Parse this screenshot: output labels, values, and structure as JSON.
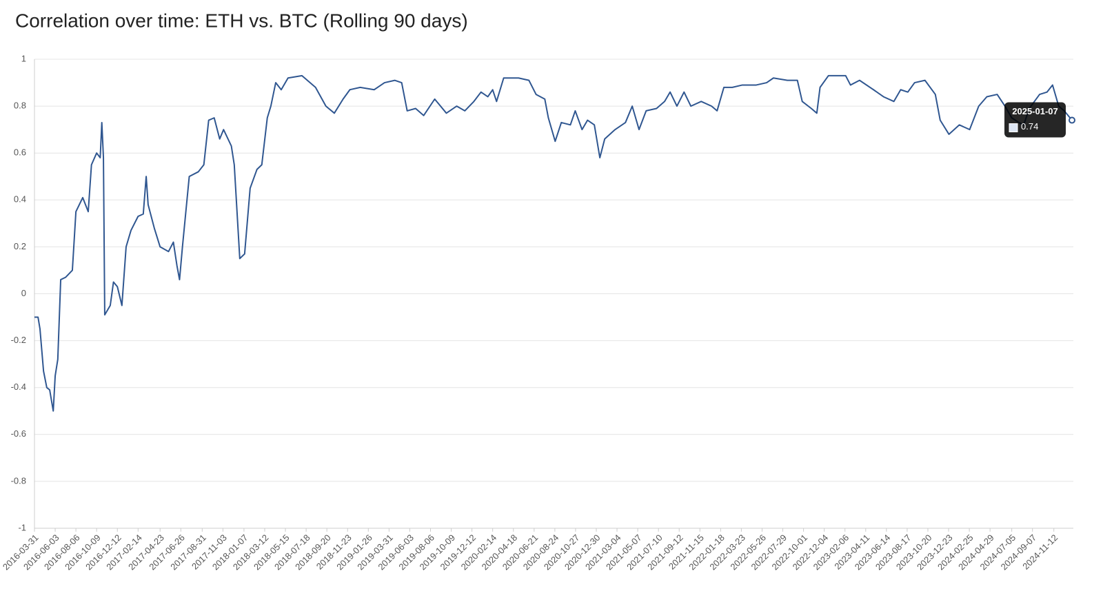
{
  "chart_data": {
    "type": "line",
    "title": "Correlation over time: ETH vs. BTC (Rolling 90 days)",
    "xlim": [
      "2016-03-31",
      "2025-01-07"
    ],
    "xticks": [
      "2016-03-31",
      "2016-06-03",
      "2016-08-06",
      "2016-10-09",
      "2016-12-12",
      "2017-02-14",
      "2017-04-23",
      "2017-06-26",
      "2017-08-31",
      "2017-11-03",
      "2018-01-07",
      "2018-03-12",
      "2018-05-15",
      "2018-07-18",
      "2018-09-20",
      "2018-11-23",
      "2019-01-26",
      "2019-03-31",
      "2019-06-03",
      "2019-08-06",
      "2019-10-09",
      "2019-12-12",
      "2020-02-14",
      "2020-04-18",
      "2020-06-21",
      "2020-08-24",
      "2020-10-27",
      "2020-12-30",
      "2021-03-04",
      "2021-05-07",
      "2021-07-10",
      "2021-09-12",
      "2021-11-15",
      "2022-01-18",
      "2022-03-23",
      "2022-05-26",
      "2022-07-29",
      "2022-10-01",
      "2022-12-04",
      "2023-02-06",
      "2023-04-11",
      "2023-06-14",
      "2023-08-17",
      "2023-10-20",
      "2023-12-23",
      "2024-02-25",
      "2024-04-29",
      "2024-07-05",
      "2024-09-07",
      "2024-11-12"
    ],
    "ylim": [
      -1,
      1
    ],
    "yticks": [
      -1,
      -0.8,
      -0.6,
      -0.4,
      -0.2,
      0,
      0.2,
      0.4,
      0.6,
      0.8,
      1
    ],
    "grid": true,
    "x": [
      "2016-03-31",
      "2016-04-11",
      "2016-04-17",
      "2016-04-28",
      "2016-05-08",
      "2016-05-17",
      "2016-05-28",
      "2016-06-03",
      "2016-06-11",
      "2016-06-20",
      "2016-07-05",
      "2016-07-26",
      "2016-08-06",
      "2016-08-27",
      "2016-09-13",
      "2016-09-23",
      "2016-10-09",
      "2016-10-20",
      "2016-10-25",
      "2016-10-30",
      "2016-11-03",
      "2016-11-20",
      "2016-11-30",
      "2016-12-12",
      "2016-12-26",
      "2017-01-08",
      "2017-01-23",
      "2017-02-14",
      "2017-03-02",
      "2017-03-11",
      "2017-03-17",
      "2017-04-05",
      "2017-04-23",
      "2017-05-19",
      "2017-06-03",
      "2017-06-14",
      "2017-06-22",
      "2017-07-01",
      "2017-07-22",
      "2017-08-19",
      "2017-09-05",
      "2017-09-20",
      "2017-10-07",
      "2017-10-24",
      "2017-11-05",
      "2017-11-29",
      "2017-12-08",
      "2017-12-25",
      "2018-01-09",
      "2018-01-26",
      "2018-02-16",
      "2018-03-03",
      "2018-03-20",
      "2018-03-31",
      "2018-04-15",
      "2018-05-02",
      "2018-05-23",
      "2018-07-05",
      "2018-08-16",
      "2018-09-17",
      "2018-10-13",
      "2018-11-09",
      "2018-11-30",
      "2019-01-01",
      "2019-02-13",
      "2019-03-17",
      "2019-04-18",
      "2019-05-09",
      "2019-05-26",
      "2019-06-21",
      "2019-07-16",
      "2019-08-19",
      "2019-09-24",
      "2019-10-26",
      "2019-11-20",
      "2019-12-18",
      "2020-01-09",
      "2020-01-30",
      "2020-02-14",
      "2020-02-26",
      "2020-03-19",
      "2020-05-04",
      "2020-06-05",
      "2020-06-27",
      "2020-07-24",
      "2020-08-04",
      "2020-08-25",
      "2020-09-13",
      "2020-10-11",
      "2020-10-26",
      "2020-11-16",
      "2020-12-03",
      "2020-12-24",
      "2021-01-10",
      "2021-01-25",
      "2021-02-26",
      "2021-03-30",
      "2021-04-20",
      "2021-05-11",
      "2021-06-02",
      "2021-07-04",
      "2021-07-29",
      "2021-08-15",
      "2021-09-05",
      "2021-09-27",
      "2021-10-18",
      "2021-11-19",
      "2021-12-21",
      "2022-01-07",
      "2022-01-28",
      "2022-02-23",
      "2022-03-26",
      "2022-05-08",
      "2022-06-09",
      "2022-06-30",
      "2022-08-12",
      "2022-09-12",
      "2022-09-27",
      "2022-10-25",
      "2022-11-11",
      "2022-11-21",
      "2022-12-17",
      "2023-02-08",
      "2023-02-23",
      "2023-03-23",
      "2023-05-05",
      "2023-06-05",
      "2023-07-07",
      "2023-07-28",
      "2023-08-19",
      "2023-09-09",
      "2023-10-11",
      "2023-11-12",
      "2023-11-27",
      "2023-12-24",
      "2024-01-25",
      "2024-02-26",
      "2024-03-25",
      "2024-04-19",
      "2024-05-21",
      "2024-06-14",
      "2024-07-05",
      "2024-07-27",
      "2024-08-11",
      "2024-08-28",
      "2024-09-29",
      "2024-10-22",
      "2024-11-08",
      "2024-11-27",
      "2024-12-14",
      "2025-01-07"
    ],
    "series": [
      {
        "color": "#2f5690",
        "values": [
          -0.1,
          -0.1,
          -0.15,
          -0.33,
          -0.4,
          -0.41,
          -0.5,
          -0.35,
          -0.28,
          0.06,
          0.07,
          0.1,
          0.35,
          0.41,
          0.35,
          0.55,
          0.6,
          0.58,
          0.73,
          0.58,
          -0.09,
          -0.05,
          0.05,
          0.03,
          -0.05,
          0.2,
          0.27,
          0.33,
          0.34,
          0.5,
          0.38,
          0.28,
          0.2,
          0.18,
          0.22,
          0.12,
          0.06,
          0.2,
          0.5,
          0.52,
          0.55,
          0.74,
          0.75,
          0.66,
          0.7,
          0.63,
          0.55,
          0.15,
          0.17,
          0.45,
          0.53,
          0.55,
          0.75,
          0.8,
          0.9,
          0.87,
          0.92,
          0.93,
          0.88,
          0.8,
          0.77,
          0.83,
          0.87,
          0.88,
          0.87,
          0.9,
          0.91,
          0.9,
          0.78,
          0.79,
          0.76,
          0.83,
          0.77,
          0.8,
          0.78,
          0.82,
          0.86,
          0.84,
          0.87,
          0.82,
          0.92,
          0.92,
          0.91,
          0.85,
          0.83,
          0.75,
          0.65,
          0.73,
          0.72,
          0.78,
          0.7,
          0.74,
          0.72,
          0.58,
          0.66,
          0.7,
          0.73,
          0.8,
          0.7,
          0.78,
          0.79,
          0.82,
          0.86,
          0.8,
          0.86,
          0.8,
          0.82,
          0.8,
          0.78,
          0.88,
          0.88,
          0.89,
          0.89,
          0.9,
          0.92,
          0.91,
          0.91,
          0.82,
          0.79,
          0.77,
          0.88,
          0.93,
          0.93,
          0.89,
          0.91,
          0.87,
          0.84,
          0.82,
          0.87,
          0.86,
          0.9,
          0.91,
          0.85,
          0.74,
          0.68,
          0.72,
          0.7,
          0.8,
          0.84,
          0.85,
          0.8,
          0.75,
          0.73,
          0.72,
          0.79,
          0.85,
          0.86,
          0.89,
          0.8,
          0.78,
          0.74
        ]
      }
    ],
    "tooltip": {
      "date": "2025-01-07",
      "value": 0.74
    }
  }
}
